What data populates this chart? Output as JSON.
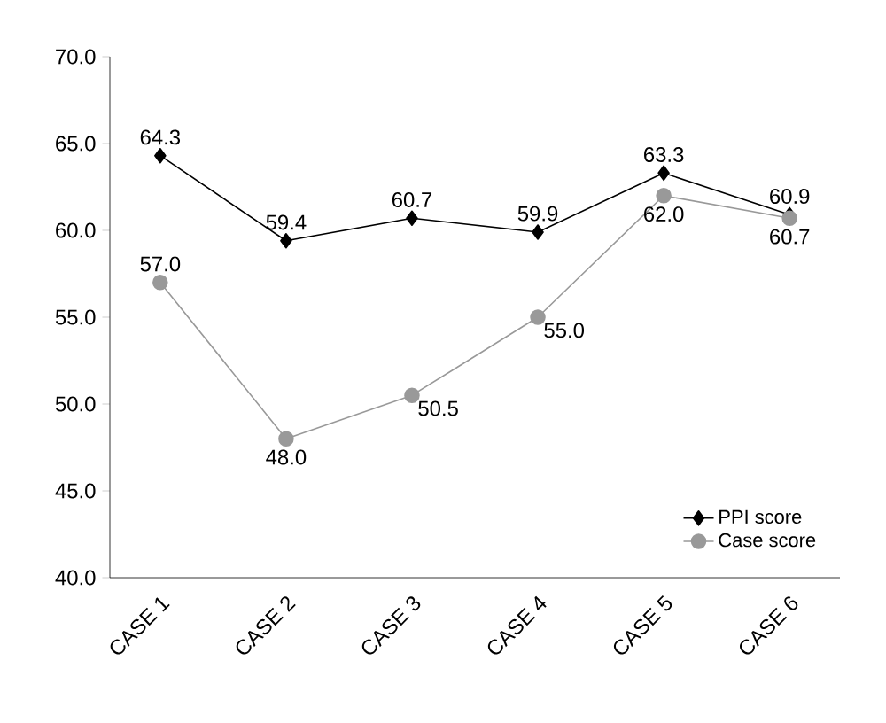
{
  "chart_data": {
    "type": "line",
    "categories": [
      "CASE 1",
      "CASE 2",
      "CASE 3",
      "CASE 4",
      "CASE 5",
      "CASE 6"
    ],
    "series": [
      {
        "name": "PPI score",
        "color": "#000000",
        "marker": "diamond",
        "values": [
          64.3,
          59.4,
          60.7,
          59.9,
          63.3,
          60.9
        ],
        "value_labels": [
          "64.3",
          "59.4",
          "60.7",
          "59.9",
          "63.3",
          "60.9"
        ]
      },
      {
        "name": "Case score",
        "color": "#999999",
        "marker": "circle",
        "values": [
          57.0,
          48.0,
          50.5,
          55.0,
          62.0,
          60.7
        ],
        "value_labels": [
          "57.0",
          "48.0",
          "50.5",
          "55.0",
          "62.0",
          "60.7"
        ]
      }
    ],
    "ylim": [
      40,
      70
    ],
    "yticks": [
      {
        "value": 40,
        "label": "40.0"
      },
      {
        "value": 45,
        "label": "45.0"
      },
      {
        "value": 50,
        "label": "50.0"
      },
      {
        "value": 55,
        "label": "55.0"
      },
      {
        "value": 60,
        "label": "60.0"
      },
      {
        "value": 65,
        "label": "65.0"
      },
      {
        "value": 70,
        "label": "70.0"
      }
    ],
    "grid": false,
    "legend": "bottom right",
    "line_style": "solid"
  }
}
